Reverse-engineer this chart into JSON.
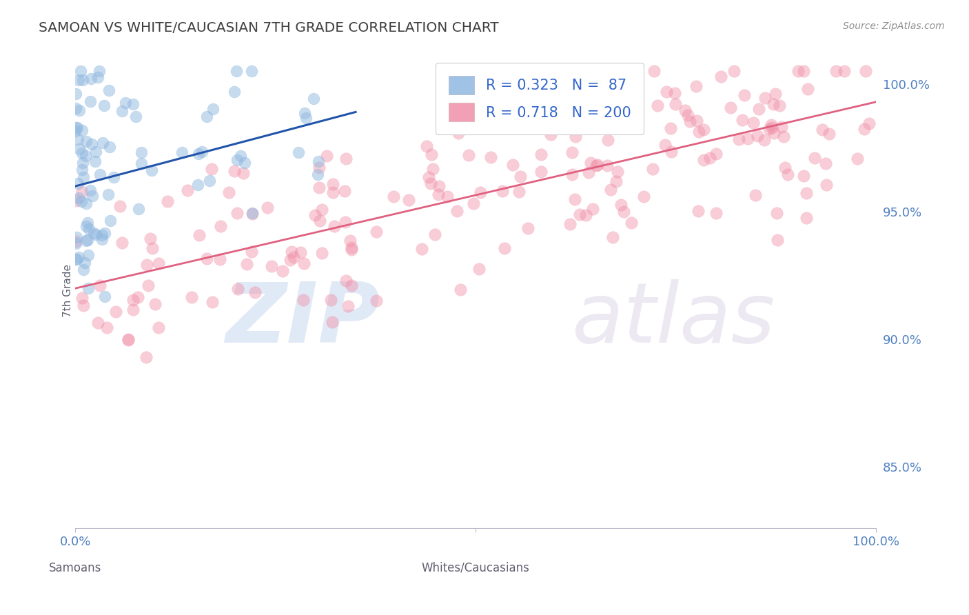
{
  "title": "SAMOAN VS WHITE/CAUCASIAN 7TH GRADE CORRELATION CHART",
  "source": "Source: ZipAtlas.com",
  "ylabel": "7th Grade",
  "yaxis_ticks": [
    0.85,
    0.9,
    0.95,
    1.0
  ],
  "yaxis_labels": [
    "85.0%",
    "90.0%",
    "95.0%",
    "100.0%"
  ],
  "xlim": [
    0.0,
    1.0
  ],
  "ylim": [
    0.826,
    1.012
  ],
  "legend_entries": [
    {
      "label": "Samoans",
      "color": "#aac4e8",
      "R": 0.323,
      "N": 87
    },
    {
      "label": "Whites/Caucasians",
      "color": "#f4a0b4",
      "R": 0.718,
      "N": 200
    }
  ],
  "blue_line_color": "#2255aa",
  "pink_line_color": "#e06080",
  "background_color": "#ffffff",
  "grid_color": "#c8c8d8",
  "title_color": "#404040",
  "axis_label_color": "#5080c0",
  "samoan_scatter_color": "#90b8e0",
  "white_scatter_color": "#f090a8",
  "legend_R_color": "#3366cc",
  "legend_N_color": "#3366cc",
  "watermark_zip_color": "#c8d8f0",
  "watermark_atlas_color": "#d0c8e0"
}
